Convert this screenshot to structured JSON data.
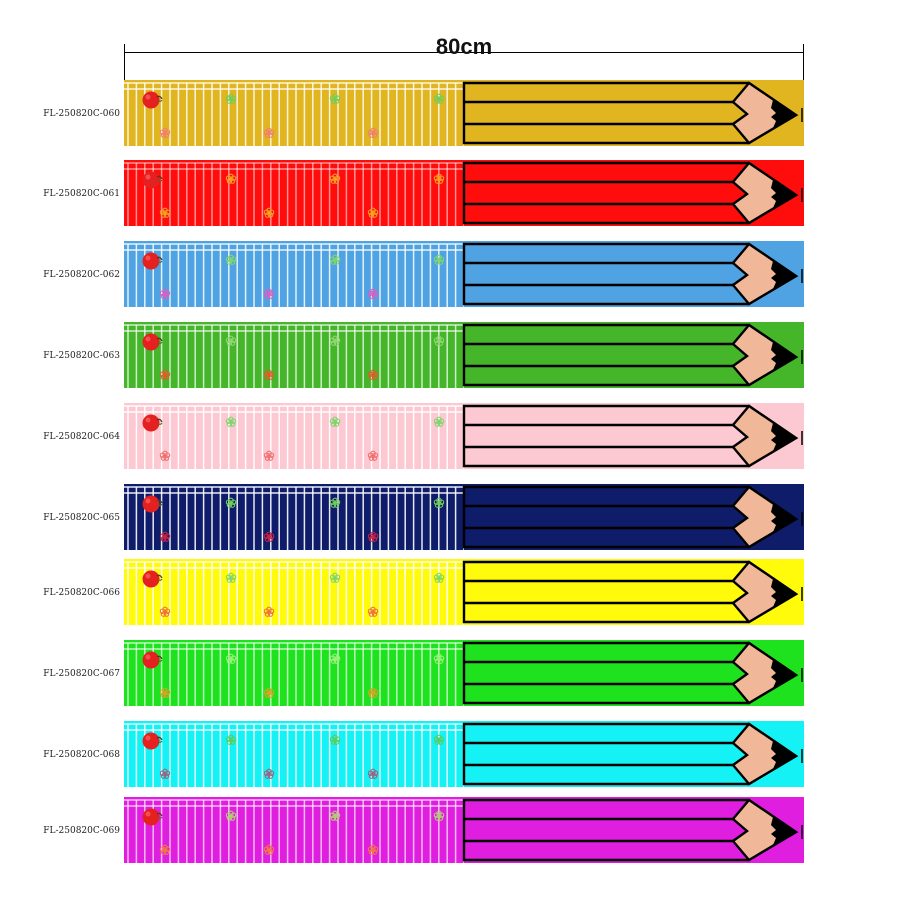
{
  "dimension_label": "80cm",
  "rows": [
    {
      "code": "FL-250820C-060",
      "color": "#e0b520",
      "flower": "#f07f70",
      "leaf": "#6fcf5a",
      "fence_opacity": 0.85
    },
    {
      "code": "FL-250820C-061",
      "color": "#ff0c0c",
      "flower": "#f7a020",
      "leaf": "#f7a020",
      "fence_opacity": 0.55
    },
    {
      "code": "FL-250820C-062",
      "color": "#4fa3e3",
      "flower": "#e05cc0",
      "leaf": "#7fd66a",
      "fence_opacity": 0.85
    },
    {
      "code": "FL-250820C-063",
      "color": "#45b52a",
      "flower": "#e65a2a",
      "leaf": "#8fd870",
      "fence_opacity": 0.75
    },
    {
      "code": "FL-250820C-064",
      "color": "#fcc8d2",
      "flower": "#f07070",
      "leaf": "#7fd66a",
      "fence_opacity": 0.95
    },
    {
      "code": "FL-250820C-065",
      "color": "#0f1c6a",
      "flower": "#cc2244",
      "leaf": "#6fcf5a",
      "fence_opacity": 0.9
    },
    {
      "code": "FL-250820C-066",
      "color": "#fffb0a",
      "flower": "#f07040",
      "leaf": "#7fd66a",
      "fence_opacity": 0.95
    },
    {
      "code": "FL-250820C-067",
      "color": "#1fe21f",
      "flower": "#e0a020",
      "leaf": "#9af27a",
      "fence_opacity": 0.7
    },
    {
      "code": "FL-250820C-068",
      "color": "#15f2f5",
      "flower": "#a06080",
      "leaf": "#5ccc5a",
      "fence_opacity": 0.85
    },
    {
      "code": "FL-250820C-069",
      "color": "#e01ee0",
      "flower": "#f07a40",
      "leaf": "#b0d070",
      "fence_opacity": 0.7
    }
  ]
}
